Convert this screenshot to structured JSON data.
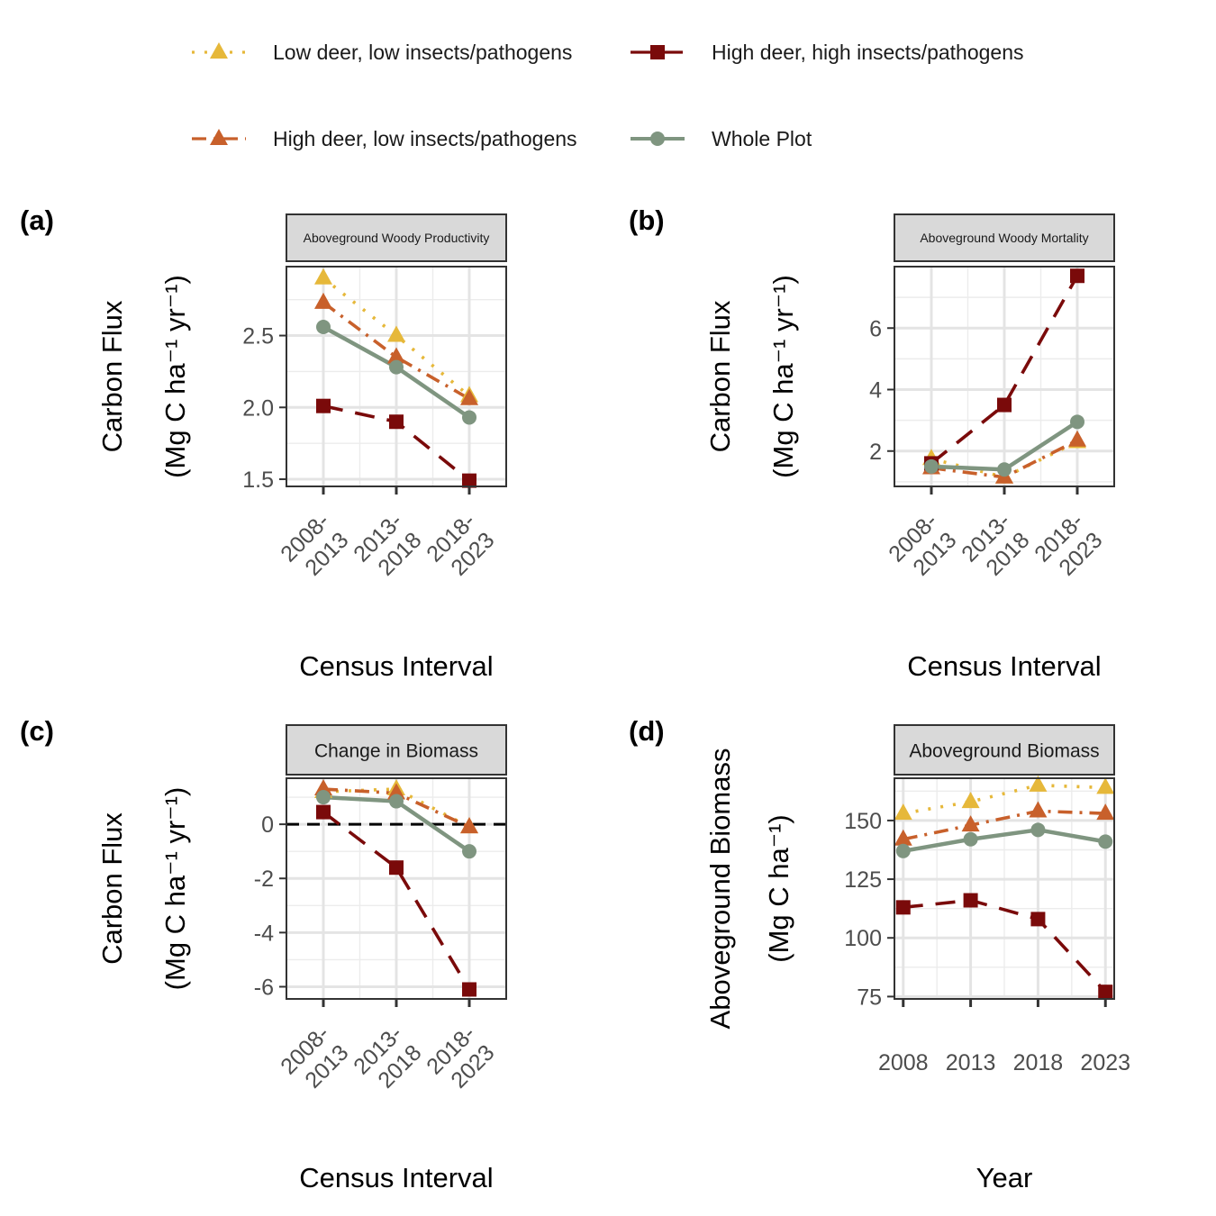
{
  "legend": {
    "position": "top",
    "items": [
      {
        "series_key": "low_low",
        "label": "Low deer, low insects/pathogens"
      },
      {
        "series_key": "high_high",
        "label": "High deer, high insects/pathogens"
      },
      {
        "series_key": "high_low",
        "label": "High deer, low insects/pathogens"
      },
      {
        "series_key": "whole",
        "label": "Whole Plot"
      }
    ]
  },
  "series_styles": {
    "low_low": {
      "color": "#E6B83A",
      "marker": "triangle",
      "line": "dotted"
    },
    "high_low": {
      "color": "#C8602B",
      "marker": "triangle",
      "line": "dashdot"
    },
    "high_high": {
      "color": "#7A0A0A",
      "marker": "square",
      "line": "longdash"
    },
    "whole": {
      "color": "#7F9580",
      "marker": "circle",
      "line": "solid"
    }
  },
  "chart_data": [
    {
      "panel": "(a)",
      "type": "line",
      "strip": "Aboveground Woody Productivity",
      "xlabel": "Census Interval",
      "ylabel": [
        "Carbon Flux",
        "(Mg C ha⁻¹ yr⁻¹)"
      ],
      "categories": [
        "2008-\n2013",
        "2013-\n2018",
        "2018-\n2023"
      ],
      "tick_rotate": true,
      "ylim": [
        1.45,
        2.98
      ],
      "yticks": [
        1.5,
        2.0,
        2.5
      ],
      "ytick_labels": [
        "1.5",
        "2.0",
        "2.5"
      ],
      "series": [
        {
          "key": "low_low",
          "name": "Low deer, low insects/pathogens",
          "values": [
            2.9,
            2.5,
            2.08
          ]
        },
        {
          "key": "high_low",
          "name": "High deer, low insects/pathogens",
          "values": [
            2.73,
            2.35,
            2.06
          ]
        },
        {
          "key": "high_high",
          "name": "High deer, high insects/pathogens",
          "values": [
            2.01,
            1.9,
            1.49
          ]
        },
        {
          "key": "whole",
          "name": "Whole Plot",
          "values": [
            2.56,
            2.28,
            1.93
          ]
        }
      ]
    },
    {
      "panel": "(b)",
      "type": "line",
      "strip": "Aboveground Woody Mortality",
      "xlabel": "Census Interval",
      "ylabel": [
        "Carbon Flux",
        "(Mg C ha⁻¹ yr⁻¹)"
      ],
      "categories": [
        "2008-\n2013",
        "2013-\n2018",
        "2018-\n2023"
      ],
      "tick_rotate": true,
      "ylim": [
        0.85,
        8.0
      ],
      "yticks": [
        2,
        4,
        6
      ],
      "ytick_labels": [
        "2",
        "4",
        "6"
      ],
      "series": [
        {
          "key": "low_low",
          "name": "Low deer, low insects/pathogens",
          "values": [
            1.75,
            1.15,
            2.3
          ]
        },
        {
          "key": "high_low",
          "name": "High deer, low insects/pathogens",
          "values": [
            1.45,
            1.15,
            2.35
          ]
        },
        {
          "key": "high_high",
          "name": "High deer, high insects/pathogens",
          "values": [
            1.6,
            3.5,
            7.7
          ]
        },
        {
          "key": "whole",
          "name": "Whole Plot",
          "values": [
            1.5,
            1.4,
            2.95
          ]
        }
      ]
    },
    {
      "panel": "(c)",
      "type": "line",
      "strip": "Change in Biomass",
      "xlabel": "Census Interval",
      "ylabel": [
        "Carbon Flux",
        "(Mg C ha⁻¹ yr⁻¹)"
      ],
      "categories": [
        "2008-\n2013",
        "2013-\n2018",
        "2018-\n2023"
      ],
      "tick_rotate": true,
      "ylim": [
        -6.45,
        1.7
      ],
      "yticks": [
        -6,
        -4,
        -2,
        0
      ],
      "ytick_labels": [
        "-6",
        "-4",
        "-2",
        "0"
      ],
      "hline": 0,
      "series": [
        {
          "key": "low_low",
          "name": "Low deer, low insects/pathogens",
          "values": [
            1.2,
            1.3,
            -0.1
          ]
        },
        {
          "key": "high_low",
          "name": "High deer, low insects/pathogens",
          "values": [
            1.3,
            1.15,
            -0.1
          ]
        },
        {
          "key": "high_high",
          "name": "High deer, high insects/pathogens",
          "values": [
            0.45,
            -1.6,
            -6.1
          ]
        },
        {
          "key": "whole",
          "name": "Whole Plot",
          "values": [
            1.0,
            0.85,
            -1.0
          ]
        }
      ]
    },
    {
      "panel": "(d)",
      "type": "line",
      "strip": "Aboveground Biomass",
      "xlabel": "Year",
      "ylabel": [
        "Aboveground Biomass",
        "(Mg C ha⁻¹)"
      ],
      "categories": [
        "2008",
        "2013",
        "2018",
        "2023"
      ],
      "tick_rotate": false,
      "ylim": [
        74,
        168
      ],
      "yticks": [
        75,
        100,
        125,
        150
      ],
      "ytick_labels": [
        "75",
        "100",
        "125",
        "150"
      ],
      "series": [
        {
          "key": "low_low",
          "name": "Low deer, low insects/pathogens",
          "values": [
            153,
            158,
            165,
            164
          ]
        },
        {
          "key": "high_low",
          "name": "High deer, low insects/pathogens",
          "values": [
            142,
            148,
            154,
            153
          ]
        },
        {
          "key": "high_high",
          "name": "High deer, high insects/pathogens",
          "values": [
            113,
            116,
            108,
            77
          ]
        },
        {
          "key": "whole",
          "name": "Whole Plot",
          "values": [
            137,
            142,
            146,
            141
          ]
        }
      ]
    }
  ]
}
